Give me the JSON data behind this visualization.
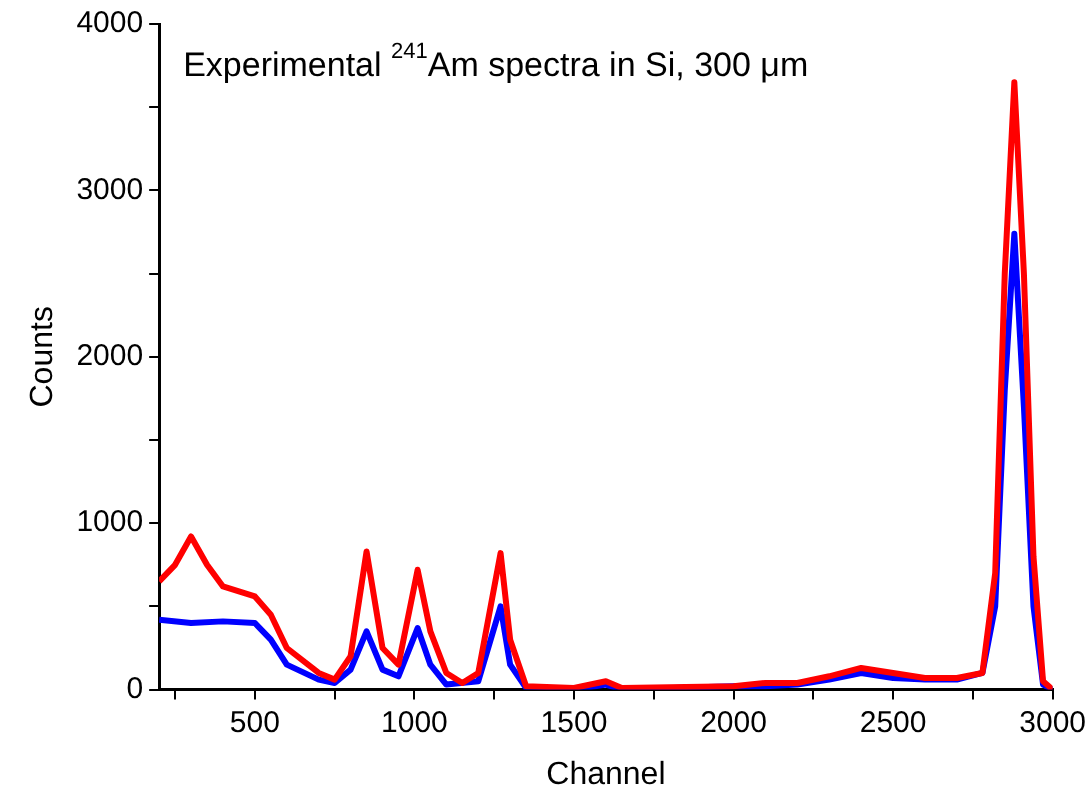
{
  "chart_data": {
    "type": "line",
    "title": "Experimental $^{241}$Am spectra in Si, 300 μm",
    "xlabel": "Channel",
    "ylabel": "Counts",
    "xlim": [
      200,
      3000
    ],
    "ylim": [
      0,
      4000
    ],
    "xticks": [
      {
        "value": 250,
        "label": null
      },
      500,
      {
        "value": 750,
        "label": null
      },
      1000,
      {
        "value": 1250,
        "label": null
      },
      1500,
      {
        "value": 1750,
        "label": null
      },
      2000,
      {
        "value": 2250,
        "label": null
      },
      2500,
      {
        "value": 2750,
        "label": null
      },
      3000
    ],
    "yticks": [
      0,
      {
        "value": 500,
        "label": null
      },
      1000,
      {
        "value": 1500,
        "label": null
      },
      2000,
      {
        "value": 2500,
        "label": null
      },
      3000,
      {
        "value": 3500,
        "label": null
      },
      4000
    ],
    "grid": false,
    "legend": false,
    "marker": "none",
    "line_style": "solid",
    "series": [
      {
        "color": "#0000ff",
        "x": [
          200,
          300,
          400,
          500,
          550,
          600,
          700,
          750,
          800,
          850,
          900,
          950,
          1010,
          1050,
          1100,
          1200,
          1270,
          1300,
          1350,
          1500,
          1600,
          1650,
          2000,
          2100,
          2200,
          2300,
          2400,
          2500,
          2600,
          2700,
          2780,
          2820,
          2850,
          2880,
          2910,
          2940,
          2970,
          3000
        ],
        "values": [
          420,
          400,
          410,
          400,
          300,
          150,
          60,
          40,
          120,
          350,
          120,
          80,
          370,
          150,
          30,
          50,
          500,
          150,
          10,
          0,
          30,
          0,
          20,
          20,
          30,
          60,
          100,
          70,
          60,
          60,
          100,
          500,
          1800,
          2740,
          1700,
          500,
          30,
          0
        ]
      },
      {
        "color": "#ff0000",
        "x": [
          200,
          250,
          300,
          350,
          400,
          500,
          550,
          600,
          700,
          750,
          800,
          850,
          900,
          950,
          1010,
          1050,
          1100,
          1150,
          1200,
          1270,
          1300,
          1350,
          1500,
          1600,
          1650,
          2000,
          2100,
          2200,
          2300,
          2400,
          2500,
          2600,
          2700,
          2780,
          2820,
          2850,
          2880,
          2910,
          2940,
          2970,
          3000
        ],
        "values": [
          650,
          750,
          920,
          750,
          620,
          560,
          450,
          250,
          100,
          60,
          200,
          830,
          250,
          150,
          720,
          350,
          100,
          40,
          100,
          820,
          300,
          20,
          10,
          50,
          10,
          20,
          40,
          40,
          80,
          130,
          100,
          70,
          70,
          100,
          700,
          2500,
          3650,
          2500,
          800,
          50,
          0
        ]
      }
    ]
  }
}
